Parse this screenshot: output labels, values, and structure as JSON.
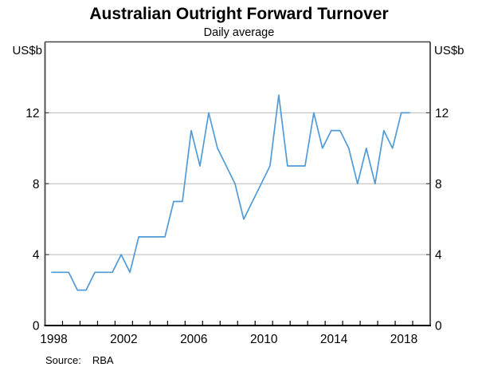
{
  "figure": {
    "title": "Australian Outright Forward Turnover",
    "subtitle": "Daily average",
    "unit_left": "US$b",
    "unit_right": "US$b",
    "source_label": "Source:",
    "source_value": "RBA"
  },
  "chart_data": {
    "type": "line",
    "title": "Australian Outright Forward Turnover",
    "subtitle": "Daily average",
    "xlabel": "",
    "ylabel": "US$b",
    "source": "Source: RBA",
    "xlim": [
      1998,
      2020
    ],
    "ylim": [
      0,
      16
    ],
    "y_ticks": [
      0,
      4,
      8,
      12
    ],
    "y_gridlines": [
      4,
      8,
      12
    ],
    "x_tick_labels": [
      "1998",
      "2002",
      "2006",
      "2010",
      "2014",
      "2018"
    ],
    "x_tick_label_years": [
      1998,
      2002,
      2006,
      2010,
      2014,
      2018
    ],
    "x_minor_tick_interval_years": 1,
    "grid": "horizontal",
    "legend": "none",
    "series": [
      {
        "name": "Australian outright forward turnover, daily average (US$b)",
        "frequency": "semiannual",
        "x_start": 1998.35,
        "x_step": 0.5,
        "values": [
          3,
          3,
          3,
          2,
          2,
          3,
          3,
          3,
          4,
          3,
          5,
          5,
          5,
          5,
          7,
          7,
          11,
          9,
          12,
          10,
          9,
          8,
          6,
          7,
          8,
          9,
          13,
          9,
          9,
          9,
          12,
          10,
          11,
          11,
          10,
          8,
          10,
          8,
          11,
          10,
          12,
          12
        ],
        "color": "#519ad8"
      }
    ],
    "colors": {
      "line": "#519ad8",
      "grid": "#b8b8b8",
      "axis": "#000000",
      "box_border": "#454545",
      "text": "#000000",
      "background": "#ffffff"
    }
  }
}
